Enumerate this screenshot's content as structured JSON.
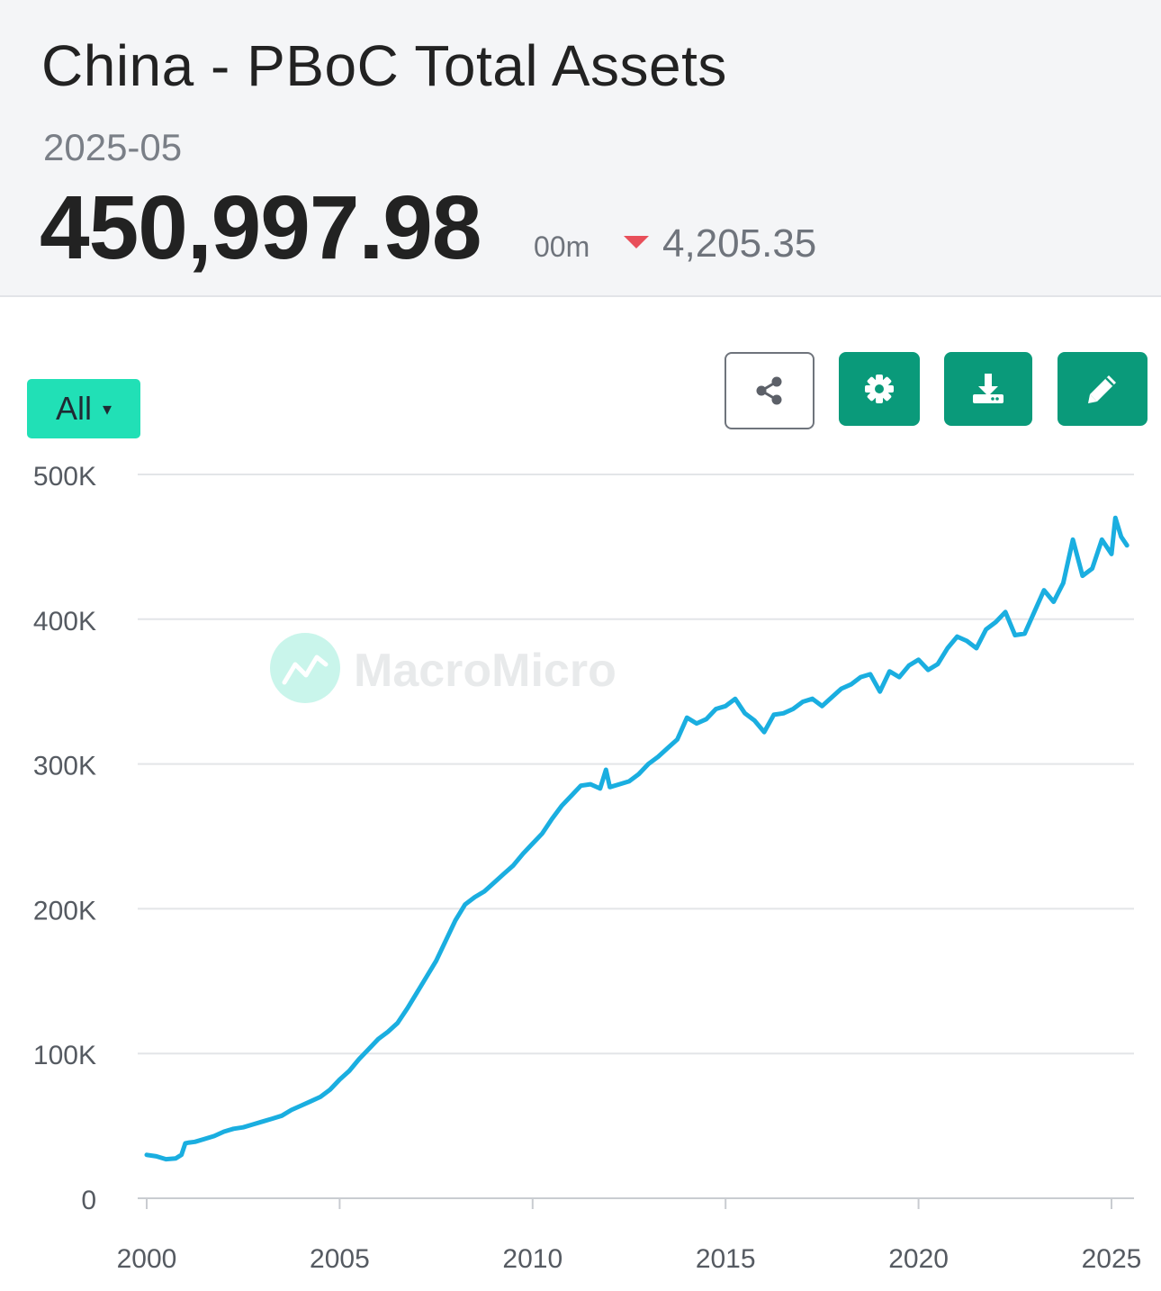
{
  "header": {
    "title": "China - PBoC Total Assets",
    "date": "2025-05",
    "value": "450,997.98",
    "unit": "00m",
    "change": "4,205.35",
    "change_direction": "down",
    "change_color": "#e84f5a"
  },
  "controls": {
    "range_label": "All",
    "range_caret": "▾",
    "buttons": [
      {
        "icon": "share-icon"
      },
      {
        "icon": "gear-icon"
      },
      {
        "icon": "download-icon"
      },
      {
        "icon": "pencil-icon"
      }
    ],
    "button_color": "#0a9a7a",
    "range_color": "#21e0b6"
  },
  "watermark": "MacroMicro",
  "chart_data": {
    "type": "line",
    "title": "",
    "xlabel": "",
    "ylabel": "",
    "xlim": [
      2000,
      2025.6
    ],
    "ylim": [
      0,
      500000
    ],
    "y_ticks": [
      0,
      100000,
      200000,
      300000,
      400000,
      500000
    ],
    "y_tick_labels": [
      "0",
      "100K",
      "200K",
      "300K",
      "400K",
      "500K"
    ],
    "x_ticks": [
      2000,
      2005,
      2010,
      2015,
      2020,
      2025
    ],
    "x_tick_labels": [
      "2000",
      "2005",
      "2010",
      "2015",
      "2020",
      "2025"
    ],
    "grid": true,
    "line_color": "#1aaee0",
    "series": [
      {
        "x": [
          2000.0,
          2000.25,
          2000.5,
          2000.75,
          2000.9,
          2001.0,
          2001.1,
          2001.25,
          2001.5,
          2001.75,
          2002.0,
          2002.25,
          2002.5,
          2002.75,
          2003.0,
          2003.25,
          2003.5,
          2003.75,
          2004.0,
          2004.25,
          2004.5,
          2004.75,
          2005.0,
          2005.25,
          2005.5,
          2005.75,
          2006.0,
          2006.25,
          2006.5,
          2006.75,
          2007.0,
          2007.25,
          2007.5,
          2007.75,
          2008.0,
          2008.25,
          2008.5,
          2008.75,
          2009.0,
          2009.25,
          2009.5,
          2009.75,
          2010.0,
          2010.25,
          2010.5,
          2010.75,
          2011.0,
          2011.25,
          2011.5,
          2011.75,
          2011.9,
          2012.0,
          2012.25,
          2012.5,
          2012.75,
          2013.0,
          2013.25,
          2013.5,
          2013.75,
          2014.0,
          2014.25,
          2014.5,
          2014.75,
          2015.0,
          2015.25,
          2015.5,
          2015.75,
          2016.0,
          2016.25,
          2016.5,
          2016.75,
          2017.0,
          2017.25,
          2017.5,
          2017.75,
          2018.0,
          2018.25,
          2018.5,
          2018.75,
          2019.0,
          2019.25,
          2019.5,
          2019.75,
          2020.0,
          2020.25,
          2020.5,
          2020.75,
          2021.0,
          2021.25,
          2021.5,
          2021.75,
          2022.0,
          2022.25,
          2022.5,
          2022.75,
          2023.0,
          2023.25,
          2023.5,
          2023.75,
          2024.0,
          2024.25,
          2024.5,
          2024.75,
          2025.0,
          2025.1,
          2025.25,
          2025.4
        ],
        "y": [
          30000,
          29000,
          27000,
          27500,
          30000,
          38000,
          38500,
          39000,
          41000,
          43000,
          46000,
          48000,
          49000,
          51000,
          53000,
          55000,
          57000,
          61000,
          64000,
          67000,
          70000,
          75000,
          82000,
          88000,
          96000,
          103000,
          110000,
          115000,
          121000,
          131000,
          142000,
          153000,
          164000,
          178000,
          192000,
          203000,
          208000,
          212000,
          218000,
          224000,
          230000,
          238000,
          245000,
          252000,
          262000,
          271000,
          278000,
          285000,
          286000,
          283000,
          296000,
          284000,
          286000,
          288000,
          293000,
          300000,
          305000,
          311000,
          317000,
          332000,
          328000,
          331000,
          338000,
          340000,
          345000,
          335000,
          330000,
          322000,
          334000,
          335000,
          338000,
          343000,
          345000,
          340000,
          346000,
          352000,
          355000,
          360000,
          362000,
          350000,
          364000,
          360000,
          368000,
          372000,
          365000,
          369000,
          380000,
          388000,
          385000,
          380000,
          393000,
          398000,
          405000,
          389000,
          390000,
          405000,
          420000,
          412000,
          425000,
          455000,
          430000,
          435000,
          455000,
          445000,
          470000,
          457000,
          451000
        ]
      }
    ]
  }
}
